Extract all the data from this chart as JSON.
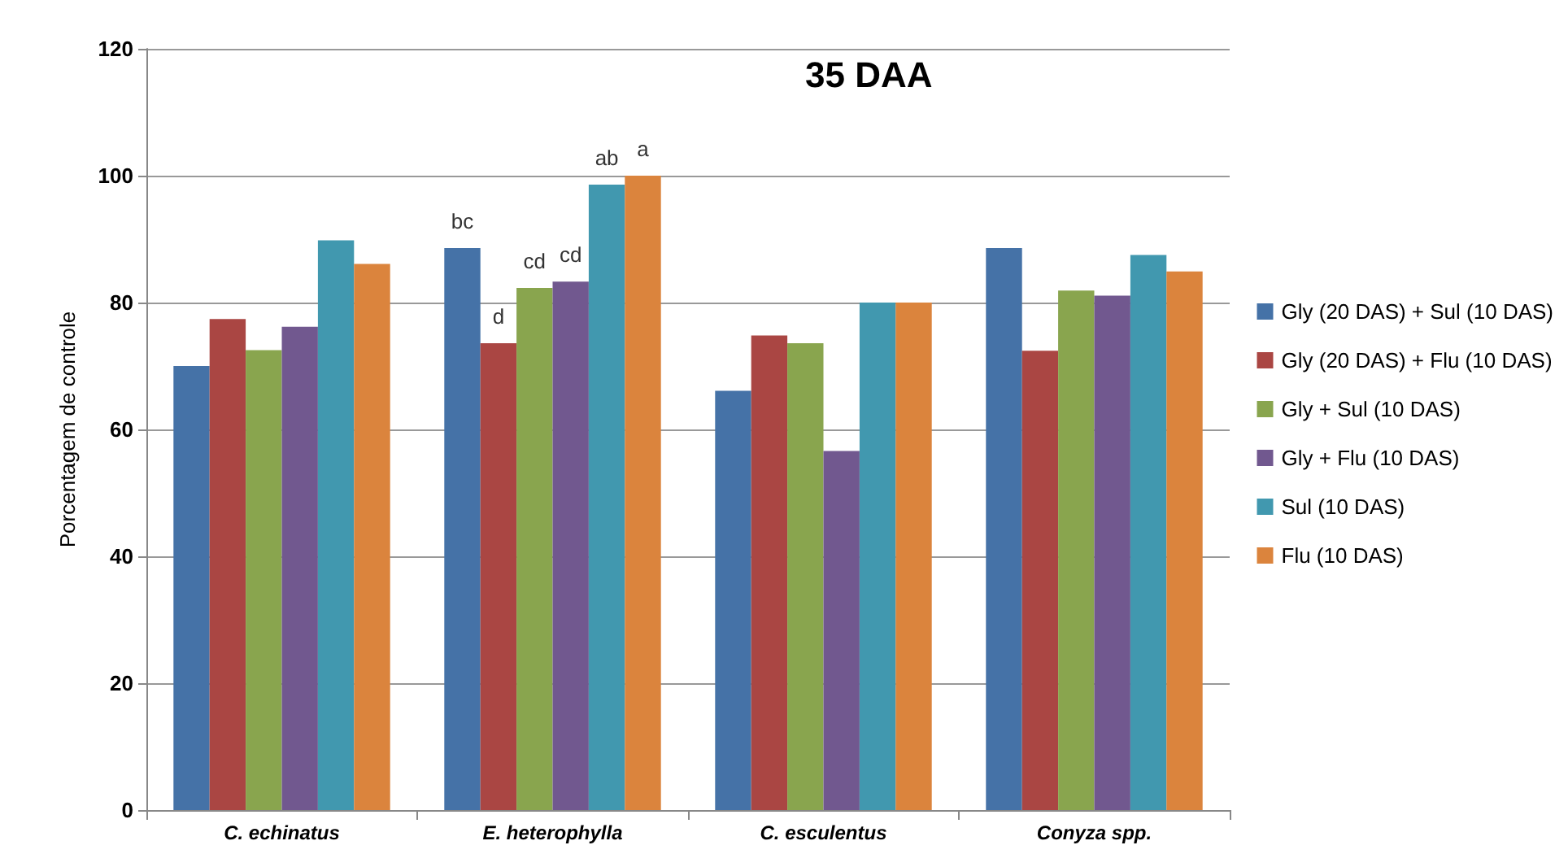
{
  "chart_data": {
    "type": "bar",
    "title": "35 DAA",
    "ylabel": "Porcentagem de controle",
    "categories": [
      "C. echinatus",
      "E. heterophylla",
      "C. esculentus",
      "Conyza spp."
    ],
    "series": [
      {
        "name": "Gly (20 DAS) + Sul (10 DAS)",
        "color": "#4572a7",
        "values": [
          70,
          88.6,
          66.1,
          88.6
        ],
        "value_labels": [
          null,
          "bc",
          null,
          null
        ]
      },
      {
        "name": "Gly (20 DAS) + Flu (10 DAS)",
        "color": "#aa4643",
        "values": [
          77.4,
          73.6,
          74.8,
          72.4
        ],
        "value_labels": [
          null,
          "d",
          null,
          null
        ]
      },
      {
        "name": "Gly + Sul (10 DAS)",
        "color": "#89a54e",
        "values": [
          72.5,
          82.3,
          73.6,
          81.9
        ],
        "value_labels": [
          null,
          "cd",
          null,
          null
        ]
      },
      {
        "name": "Gly + Flu (10 DAS)",
        "color": "#71588f",
        "values": [
          76.2,
          83.3,
          56.6,
          81.1
        ],
        "value_labels": [
          null,
          "cd",
          null,
          null
        ]
      },
      {
        "name": "Sul (10 DAS)",
        "color": "#4198af",
        "values": [
          89.8,
          98.6,
          80,
          87.5
        ],
        "value_labels": [
          null,
          "ab",
          null,
          null
        ]
      },
      {
        "name": "Flu (10 DAS)",
        "color": "#db843d",
        "values": [
          86.1,
          100,
          80,
          84.9
        ],
        "value_labels": [
          null,
          "a",
          null,
          null
        ]
      }
    ],
    "ylim": [
      0,
      120
    ],
    "yticks": [
      0,
      20,
      40,
      60,
      80,
      100,
      120
    ],
    "grid": "y",
    "legend": "right"
  }
}
